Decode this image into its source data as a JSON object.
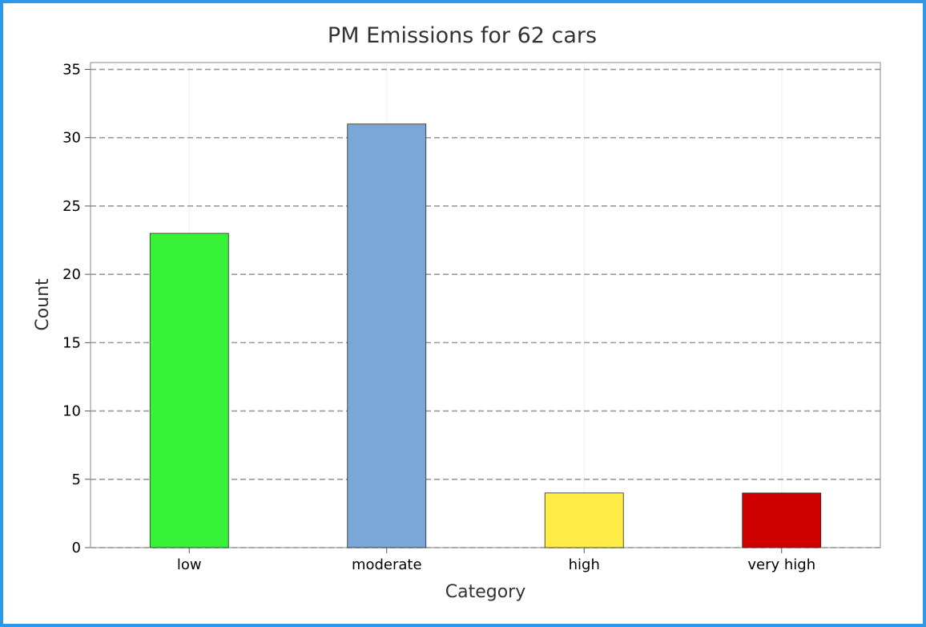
{
  "chart_data": {
    "type": "bar",
    "title": "PM Emissions for 62 cars",
    "xlabel": "Category",
    "ylabel": "Count",
    "categories": [
      "low",
      "moderate",
      "high",
      "very high"
    ],
    "values": [
      23,
      31,
      4,
      4
    ],
    "bar_colors": [
      "#37f237",
      "#7ba6d8",
      "#ffec46",
      "#d10000"
    ],
    "ylim": [
      0,
      35.5
    ],
    "yticks": [
      0,
      5,
      10,
      15,
      20,
      25,
      30,
      35
    ],
    "grid": "horizontal dashed",
    "border_color": "#2e97e8"
  }
}
